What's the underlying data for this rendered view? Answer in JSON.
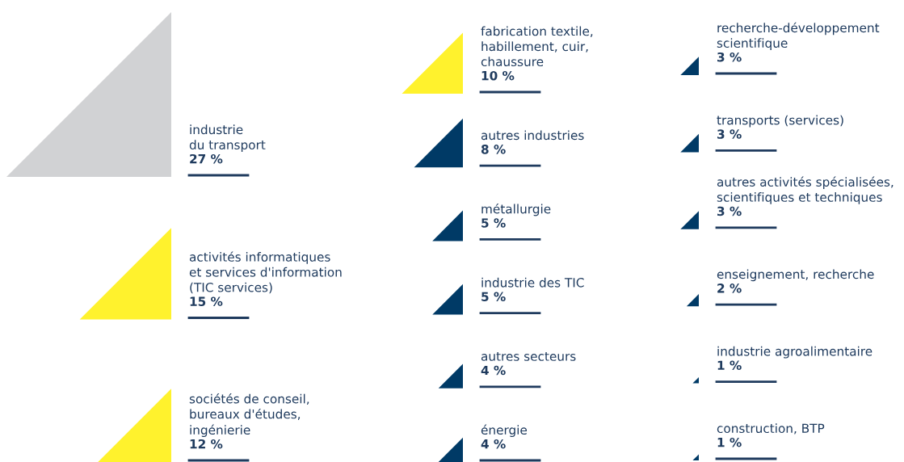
{
  "chart_data": {
    "type": "other",
    "categories": [
      "industrie\ndu transport",
      "activités informatiques\net services d'information\n(TIC services)",
      "sociétés de conseil,\nbureaux d'études,\ningénierie",
      "fabrication textile,\nhabillement, cuir,\nchaussure",
      "autres industries",
      "métallurgie",
      "industrie des TIC",
      "autres secteurs",
      "énergie",
      "recherche-développement\nscientifique",
      "transports (services)",
      "autres activités spécialisées,\nscientifiques et techniques",
      "enseignement, recherche",
      "industrie agroalimentaire",
      "construction, BTP"
    ],
    "values": [
      27,
      15,
      12,
      10,
      8,
      5,
      5,
      4,
      4,
      3,
      3,
      3,
      2,
      1,
      1
    ],
    "value_labels": [
      "27 %",
      "15 %",
      "12 %",
      "10 %",
      "8 %",
      "5 %",
      "5 %",
      "4 %",
      "4 %",
      "3 %",
      "3 %",
      "3 %",
      "2 %",
      "1 %",
      "1 %"
    ],
    "colors": [
      "#d1d2d4",
      "#fff22d",
      "#fff22d",
      "#fff22d",
      "#003a66",
      "#003a66",
      "#003a66",
      "#003a66",
      "#003a66",
      "#003a66",
      "#003a66",
      "#003a66",
      "#003a66",
      "#003a66",
      "#003a66"
    ]
  }
}
